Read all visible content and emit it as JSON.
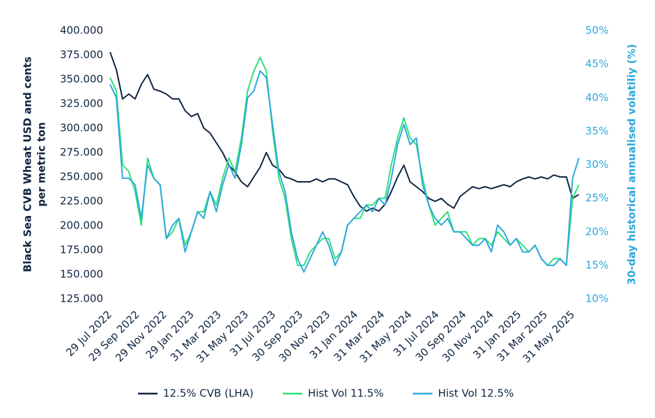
{
  "chart_data": {
    "type": "line",
    "ylabel": [
      "Black Sea CVB Wheat USD and cents",
      "per metric ton"
    ],
    "y2label": "30-day historical annualised volatiliy (%)",
    "x": [
      "2022-07-29",
      "2022-08-12",
      "2022-08-26",
      "2022-09-09",
      "2022-09-23",
      "2022-10-07",
      "2022-10-21",
      "2022-11-04",
      "2022-11-18",
      "2022-12-02",
      "2022-12-16",
      "2022-12-30",
      "2023-01-13",
      "2023-01-27",
      "2023-02-10",
      "2023-02-24",
      "2023-03-10",
      "2023-03-24",
      "2023-04-07",
      "2023-04-21",
      "2023-05-05",
      "2023-05-19",
      "2023-06-02",
      "2023-06-16",
      "2023-06-30",
      "2023-07-14",
      "2023-07-28",
      "2023-08-11",
      "2023-08-25",
      "2023-09-08",
      "2023-09-22",
      "2023-10-06",
      "2023-10-20",
      "2023-11-03",
      "2023-11-17",
      "2023-12-01",
      "2023-12-15",
      "2023-12-29",
      "2024-01-12",
      "2024-01-26",
      "2024-02-09",
      "2024-02-23",
      "2024-03-08",
      "2024-03-22",
      "2024-04-05",
      "2024-04-19",
      "2024-05-03",
      "2024-05-17",
      "2024-05-31",
      "2024-06-14",
      "2024-06-28",
      "2024-07-12",
      "2024-07-26",
      "2024-08-09",
      "2024-08-23",
      "2024-09-06",
      "2024-09-20",
      "2024-10-04",
      "2024-10-18",
      "2024-11-01",
      "2024-11-15",
      "2024-11-29",
      "2024-12-13",
      "2024-12-27",
      "2025-01-10",
      "2025-01-24",
      "2025-02-07",
      "2025-02-21",
      "2025-03-07",
      "2025-03-21",
      "2025-04-04",
      "2025-04-18",
      "2025-05-02",
      "2025-05-16",
      "2025-05-30",
      "2025-06-13"
    ],
    "series": [
      {
        "name": "12.5% CVB (LHA)",
        "color": "#0f2440",
        "axis": "y",
        "values": [
          378,
          360,
          330,
          335,
          330,
          345,
          355,
          340,
          338,
          335,
          330,
          330,
          318,
          312,
          315,
          300,
          295,
          285,
          275,
          262,
          255,
          245,
          240,
          250,
          260,
          275,
          262,
          258,
          250,
          248,
          245,
          245,
          245,
          248,
          245,
          248,
          248,
          245,
          242,
          230,
          220,
          215,
          218,
          215,
          222,
          235,
          250,
          262,
          245,
          240,
          235,
          228,
          225,
          228,
          222,
          218,
          230,
          235,
          240,
          238,
          240,
          238,
          240,
          242,
          240,
          245,
          248,
          250,
          248,
          250,
          248,
          252,
          250,
          250,
          228,
          232
        ]
      },
      {
        "name": "Hist Vol 11.5%",
        "color": "#2ee07a",
        "axis": "y2",
        "values": [
          43,
          41,
          30,
          29,
          26,
          21,
          31,
          28,
          27,
          19,
          20,
          22,
          18,
          20,
          23,
          23,
          26,
          24,
          28,
          31,
          29,
          34,
          41,
          44,
          46,
          44,
          35,
          28,
          25,
          19,
          15,
          15,
          17,
          18,
          19,
          19,
          16,
          17,
          21,
          22,
          22,
          24,
          24,
          25,
          25,
          30,
          34,
          37,
          34,
          33,
          28,
          24,
          21,
          22,
          23,
          20,
          20,
          20,
          18,
          19,
          19,
          18,
          20,
          19,
          18,
          19,
          18,
          17,
          18,
          16,
          15,
          16,
          16,
          15,
          25,
          27
        ]
      },
      {
        "name": "Hist Vol 12.5%",
        "color": "#2fa8dc",
        "axis": "y2",
        "values": [
          42,
          40,
          28,
          28,
          27,
          22,
          30,
          28,
          27,
          19,
          21,
          22,
          17,
          20,
          23,
          22,
          26,
          23,
          27,
          30,
          28,
          33,
          40,
          41,
          44,
          43,
          36,
          29,
          26,
          20,
          16,
          14,
          16,
          18,
          20,
          18,
          15,
          17,
          21,
          22,
          23,
          24,
          23,
          25,
          24,
          28,
          33,
          36,
          33,
          34,
          27,
          24,
          22,
          21,
          22,
          20,
          20,
          19,
          18,
          18,
          19,
          17,
          21,
          20,
          18,
          19,
          17,
          17,
          18,
          16,
          15,
          15,
          16,
          15,
          28,
          31
        ]
      }
    ],
    "xlim": [
      "2022-07-29",
      "2025-06-15"
    ],
    "xticks": [
      {
        "value": "2022-07-29",
        "label": "29 Jul 2022"
      },
      {
        "value": "2022-09-29",
        "label": "29 Sep 2022"
      },
      {
        "value": "2022-11-29",
        "label": "29 Nov 2022"
      },
      {
        "value": "2023-01-29",
        "label": "29 Jan 2023"
      },
      {
        "value": "2023-03-31",
        "label": "31 Mar 2023"
      },
      {
        "value": "2023-05-31",
        "label": "31 May 2023"
      },
      {
        "value": "2023-07-31",
        "label": "31 Jul 2023"
      },
      {
        "value": "2023-09-30",
        "label": "30 Sep 2023"
      },
      {
        "value": "2023-11-30",
        "label": "30 Nov 2023"
      },
      {
        "value": "2024-01-31",
        "label": "31 Jan 2024"
      },
      {
        "value": "2024-03-31",
        "label": "31 Mar 2024"
      },
      {
        "value": "2024-05-31",
        "label": "31 May 2024"
      },
      {
        "value": "2024-07-31",
        "label": "31 Jul 2024"
      },
      {
        "value": "2024-09-30",
        "label": "30 Sep 2024"
      },
      {
        "value": "2024-11-30",
        "label": "30 Nov 2024"
      },
      {
        "value": "2025-01-31",
        "label": "31 Jan 2025"
      },
      {
        "value": "2025-03-31",
        "label": "31 Mar 2025"
      },
      {
        "value": "2025-05-31",
        "label": "31 May 2025"
      }
    ],
    "ylim": [
      125,
      400
    ],
    "yticks": [
      {
        "value": 125,
        "label": "125.000"
      },
      {
        "value": 150,
        "label": "150.000"
      },
      {
        "value": 175,
        "label": "175.000"
      },
      {
        "value": 200,
        "label": "200.000"
      },
      {
        "value": 225,
        "label": "225.000"
      },
      {
        "value": 250,
        "label": "250.000"
      },
      {
        "value": 275,
        "label": "275.000"
      },
      {
        "value": 300,
        "label": "300.000"
      },
      {
        "value": 325,
        "label": "325.000"
      },
      {
        "value": 350,
        "label": "350.000"
      },
      {
        "value": 375,
        "label": "375.000"
      },
      {
        "value": 400,
        "label": "400.000"
      }
    ],
    "y2lim": [
      10,
      50
    ],
    "y2ticks": [
      {
        "value": 10,
        "label": "10%"
      },
      {
        "value": 15,
        "label": "15%"
      },
      {
        "value": 20,
        "label": "20%"
      },
      {
        "value": 25,
        "label": "25%"
      },
      {
        "value": 30,
        "label": "30%"
      },
      {
        "value": 35,
        "label": "35%"
      },
      {
        "value": 40,
        "label": "40%"
      },
      {
        "value": 45,
        "label": "45%"
      },
      {
        "value": 50,
        "label": "50%"
      }
    ],
    "y2color": "#2fa8dc",
    "legend": "bottom"
  }
}
